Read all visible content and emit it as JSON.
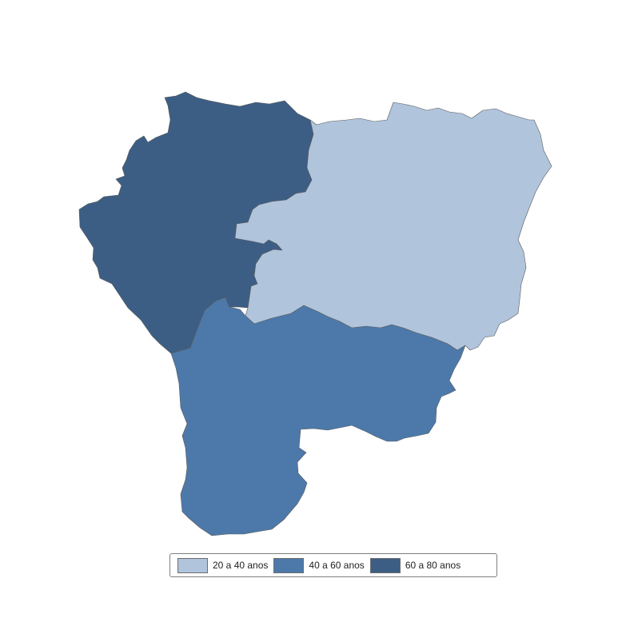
{
  "map": {
    "regions": [
      {
        "name": "northwest",
        "category": "60 a 80 anos",
        "color": "#3d5e84"
      },
      {
        "name": "northeast",
        "category": "20 a 40 anos",
        "color": "#b0c4dc"
      },
      {
        "name": "south",
        "category": "40 a 60 anos",
        "color": "#4c79aa"
      }
    ]
  },
  "legend": {
    "items": [
      {
        "label": "20 a 40 anos",
        "color": "#b0c4dc"
      },
      {
        "label": "40 a 60 anos",
        "color": "#4c79aa"
      },
      {
        "label": "60 a 80 anos",
        "color": "#3d5e84"
      }
    ]
  }
}
